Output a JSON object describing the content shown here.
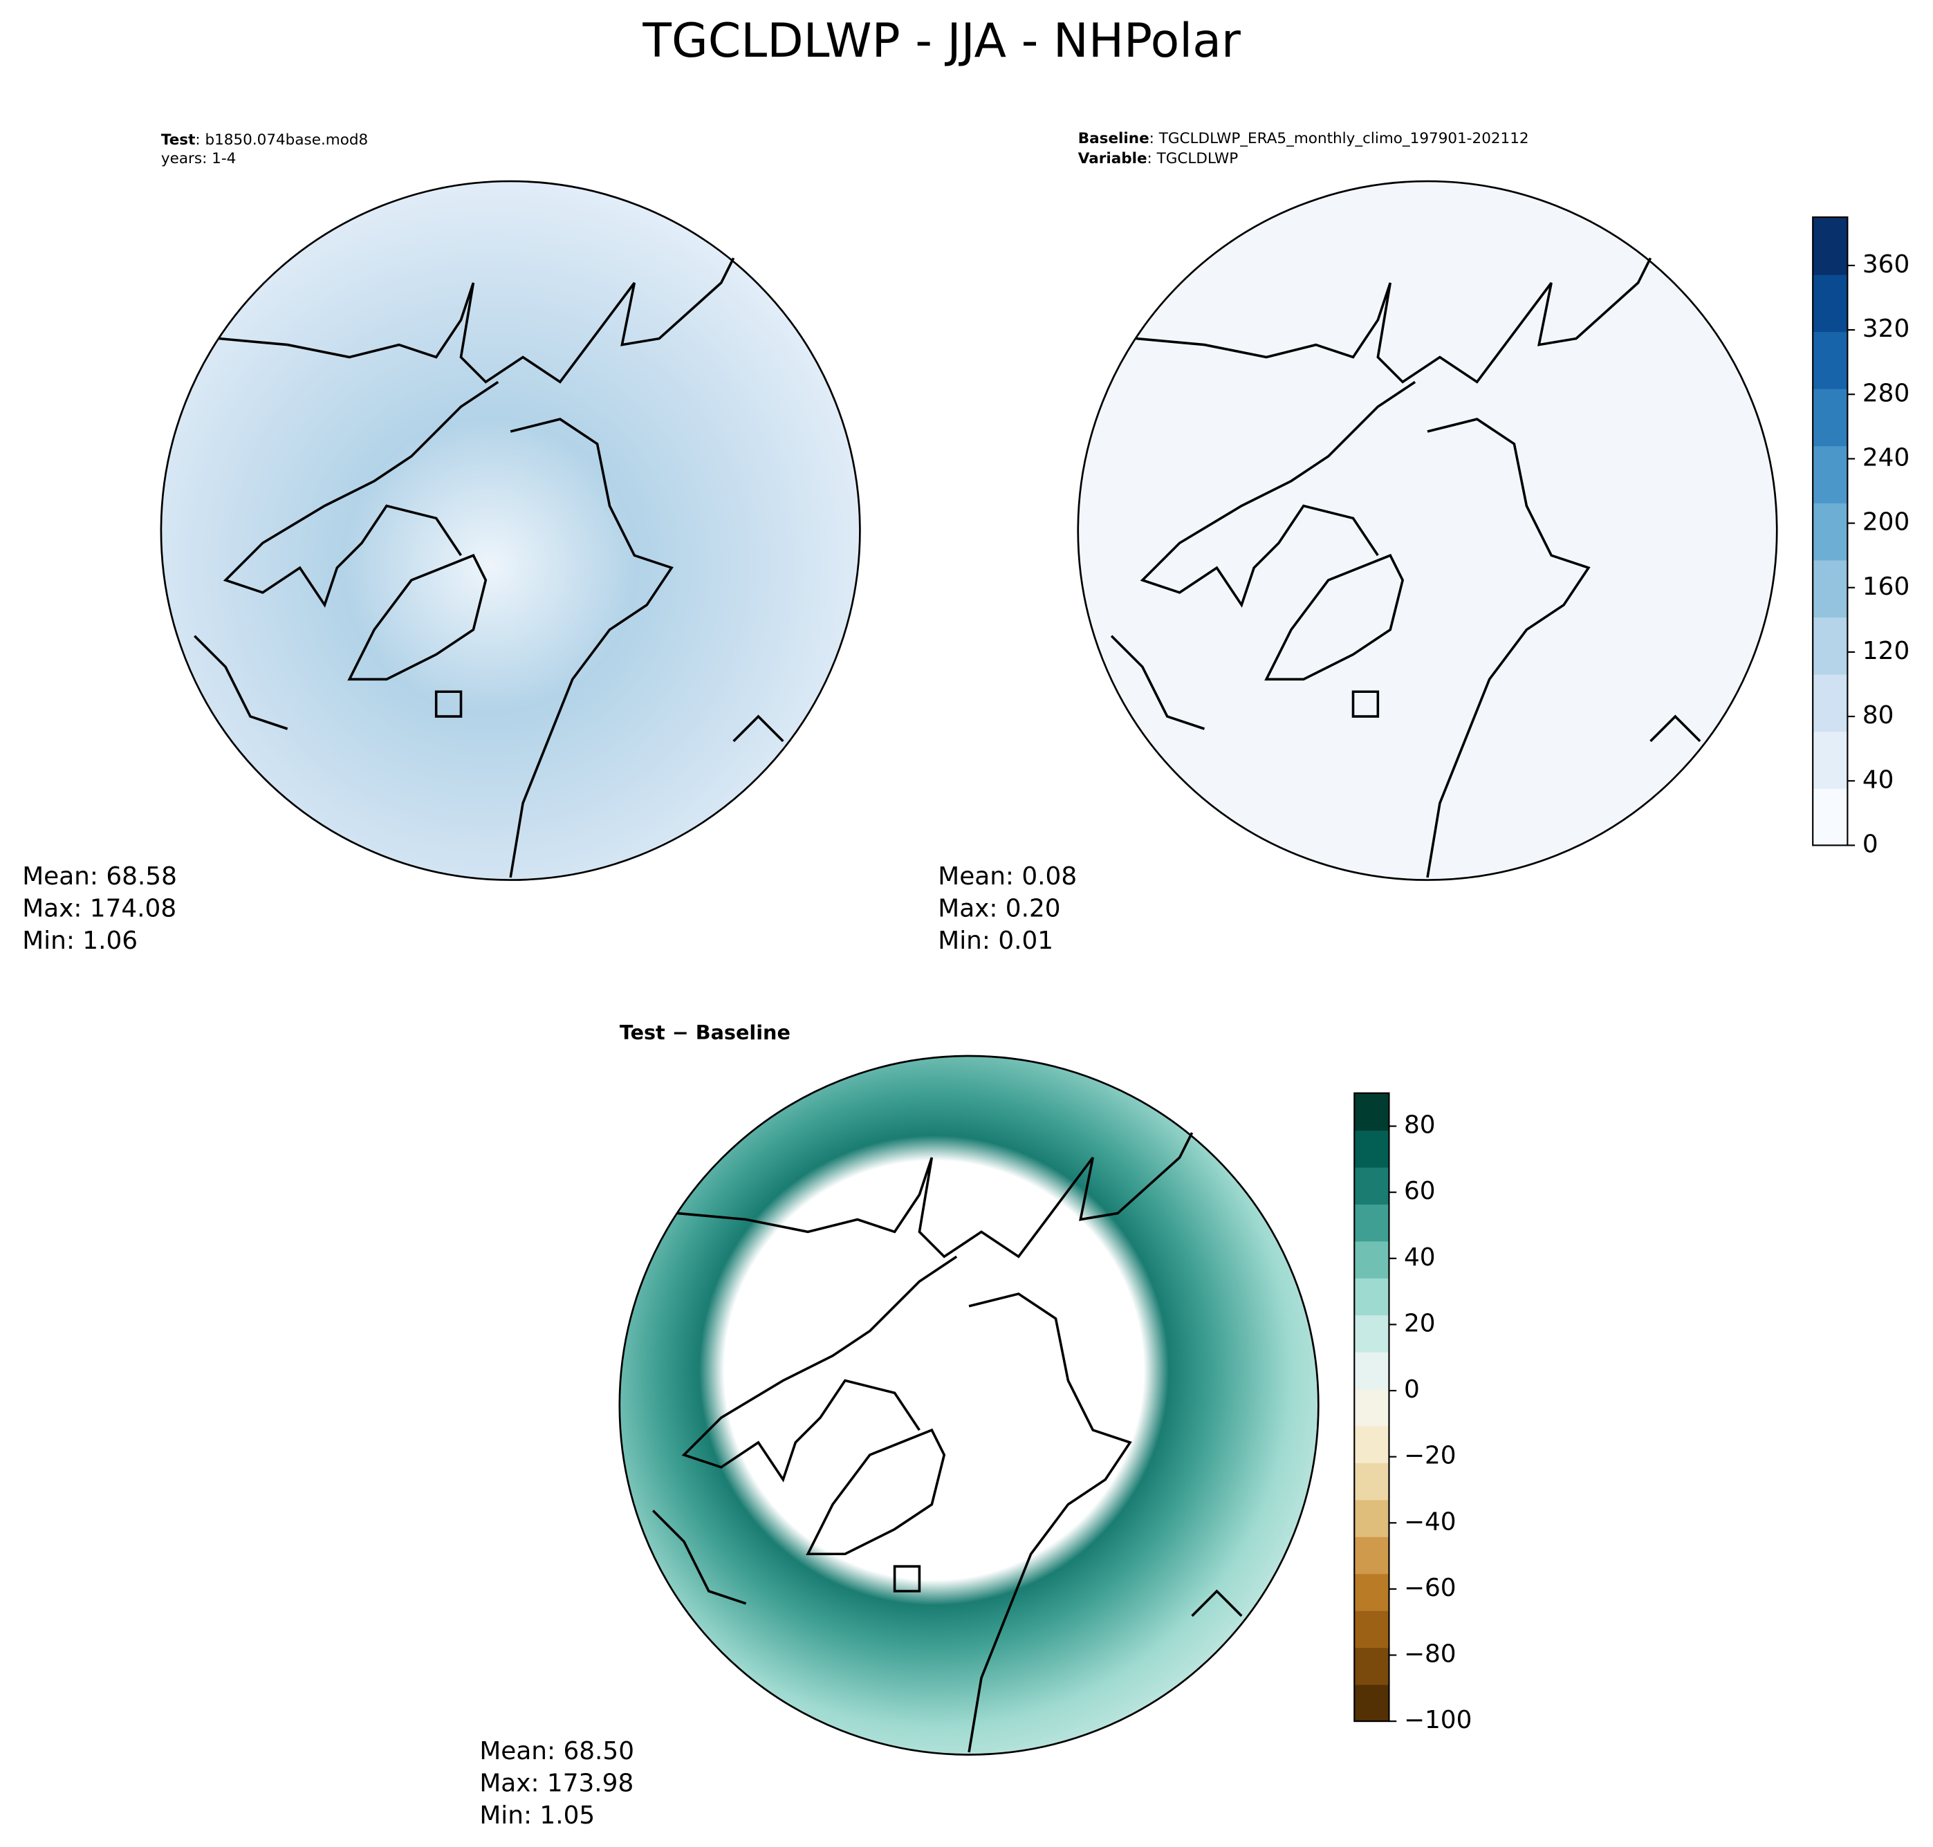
{
  "title": "TGCLDLWP - JJA - NHPolar",
  "panels": [
    {
      "label": "Test",
      "text": ": b1850.074base.mod8",
      "line2": "years: 1-4",
      "stats": [
        "Mean: 68.58",
        "Max: 174.08",
        "Min:  1.06"
      ]
    },
    {
      "label": "Baseline",
      "text": ": TGCLDLWP_ERA5_monthly_climo_197901-202112",
      "label2": "Variable",
      "text2": ": TGCLDLWP",
      "stats": [
        "Mean:  0.08",
        "Max:  0.20",
        "Min:  0.01"
      ]
    },
    {
      "label": "Test − Baseline",
      "stats": [
        "Mean: 68.50",
        "Max: 173.98",
        "Min:  1.05"
      ]
    }
  ],
  "colorbars": [
    {
      "lim": [
        0,
        390
      ],
      "ticks": [
        0,
        40,
        80,
        120,
        160,
        200,
        240,
        280,
        320,
        360
      ],
      "colors": [
        "#f7fbff",
        "#e3eef9",
        "#cfe1f2",
        "#b5d4e9",
        "#93c3df",
        "#6daed5",
        "#4b97c9",
        "#2f7ebc",
        "#1864aa",
        "#0a4a90",
        "#08306b"
      ]
    },
    {
      "lim": [
        -100,
        90
      ],
      "ticks": [
        {
          "value": -100,
          "label": "−100"
        },
        {
          "value": -80,
          "label": "−80"
        },
        {
          "value": -60,
          "label": "−60"
        },
        {
          "value": -40,
          "label": "−40"
        },
        {
          "value": -20,
          "label": "−20"
        },
        0,
        20,
        40,
        60,
        80
      ],
      "colors": [
        "#543005",
        "#7a4a0c",
        "#9c6115",
        "#b97b26",
        "#cf9a4c",
        "#dfbd7a",
        "#ecd7a6",
        "#f5eacb",
        "#f5f2e6",
        "#e6f3f1",
        "#c7eae4",
        "#9fdad0",
        "#70c1b3",
        "#3f9f93",
        "#1b7d72",
        "#035f53",
        "#003c30"
      ]
    }
  ]
}
